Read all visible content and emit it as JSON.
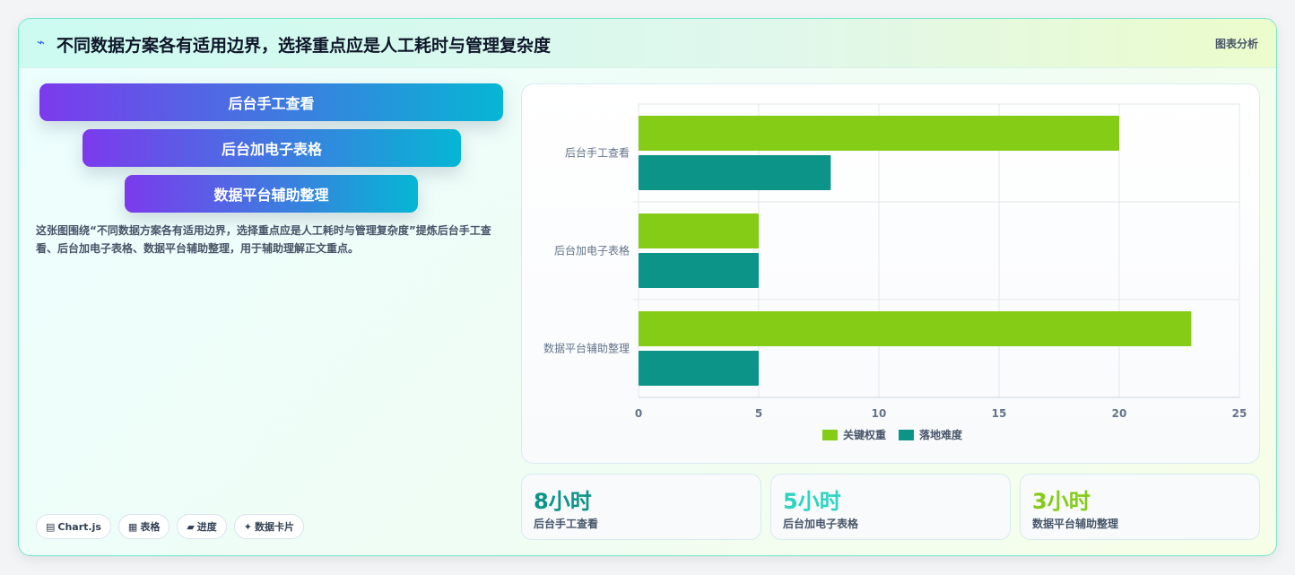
{
  "header": {
    "title": "不同数据方案各有适用边界，选择重点应是人工耗时与管理复杂度",
    "tag": "图表分析"
  },
  "funnel": [
    "后台手工查看",
    "后台加电子表格",
    "数据平台辅助整理"
  ],
  "description": "这张图围绕“不同数据方案各有适用边界，选择重点应是人工耗时与管理复杂度”提炼后台手工查看、后台加电子表格、数据平台辅助整理，用于辅助理解正文重点。",
  "chips": [
    {
      "icon": "chart-icon",
      "glyph": "▤",
      "label": "Chart.js"
    },
    {
      "icon": "table-icon",
      "glyph": "▦",
      "label": "表格"
    },
    {
      "icon": "progress-icon",
      "glyph": "▰",
      "label": "进度"
    },
    {
      "icon": "sparkle-icon",
      "glyph": "✦",
      "label": "数据卡片"
    }
  ],
  "stats": [
    {
      "value": "8小时",
      "label": "后台手工查看",
      "color": "#0d9488"
    },
    {
      "value": "5小时",
      "label": "后台加电子表格",
      "color": "#2dd4bf"
    },
    {
      "value": "3小时",
      "label": "数据平台辅助整理",
      "color": "#84cc16"
    }
  ],
  "chart_data": {
    "type": "bar",
    "orientation": "horizontal",
    "categories": [
      "后台手工查看",
      "后台加电子表格",
      "数据平台辅助整理"
    ],
    "series": [
      {
        "name": "关键权重",
        "values": [
          20,
          5,
          23
        ],
        "color": "#84cc16"
      },
      {
        "name": "落地难度",
        "values": [
          8,
          5,
          5
        ],
        "color": "#0d9488"
      }
    ],
    "xlim": [
      0,
      25
    ],
    "xticks": [
      "0",
      "5",
      "10",
      "15",
      "20",
      "25"
    ],
    "grid": true,
    "legend": "bottom"
  }
}
